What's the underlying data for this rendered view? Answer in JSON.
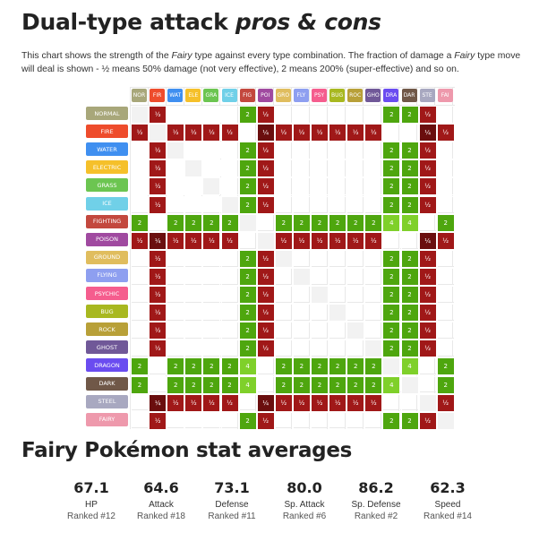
{
  "title_main": "Dual-type attack ",
  "title_em": "pros & cons",
  "intro_parts": [
    "This chart shows the strength of the ",
    "Fairy",
    " type against every type combination. The fraction of damage a ",
    "Fairy",
    " type move will deal is shown - ½ means 50% damage (not very effective), 2 means 200% (super-effective) and so on."
  ],
  "types": [
    {
      "abbr": "NOR",
      "name": "NORMAL",
      "color": "#a8a77a"
    },
    {
      "abbr": "FIR",
      "name": "FIRE",
      "color": "#ee4c2c"
    },
    {
      "abbr": "WAT",
      "name": "WATER",
      "color": "#3f8ff0"
    },
    {
      "abbr": "ELE",
      "name": "ELECTRIC",
      "color": "#f5c02a"
    },
    {
      "abbr": "GRA",
      "name": "GRASS",
      "color": "#6cc551"
    },
    {
      "abbr": "ICE",
      "name": "ICE",
      "color": "#70d0e8"
    },
    {
      "abbr": "FIG",
      "name": "FIGHTING",
      "color": "#c3483e"
    },
    {
      "abbr": "POI",
      "name": "POISON",
      "color": "#a04aa0"
    },
    {
      "abbr": "GRO",
      "name": "GROUND",
      "color": "#e0bd5e"
    },
    {
      "abbr": "FLY",
      "name": "FLYING",
      "color": "#8e9ff0"
    },
    {
      "abbr": "PSY",
      "name": "PSYCHIC",
      "color": "#f55d8e"
    },
    {
      "abbr": "BUG",
      "name": "BUG",
      "color": "#a8b820"
    },
    {
      "abbr": "ROC",
      "name": "ROCK",
      "color": "#b8a038"
    },
    {
      "abbr": "GHO",
      "name": "GHOST",
      "color": "#705898"
    },
    {
      "abbr": "DRA",
      "name": "DRAGON",
      "color": "#6a4cf0"
    },
    {
      "abbr": "DAR",
      "name": "DARK",
      "color": "#705848"
    },
    {
      "abbr": "STE",
      "name": "STEEL",
      "color": "#a8a8c0"
    },
    {
      "abbr": "FAI",
      "name": "FAIRY",
      "color": "#ee99ac"
    }
  ],
  "matrix": [
    [
      "",
      "½",
      "",
      "",
      "",
      "",
      "2",
      "½",
      "",
      "",
      "",
      "",
      "",
      "",
      "2",
      "2",
      "½",
      ""
    ],
    [
      "½",
      "",
      "½",
      "½",
      "½",
      "½",
      "",
      "¼",
      "½",
      "½",
      "½",
      "½",
      "½",
      "½",
      "",
      "",
      "¼",
      "½"
    ],
    [
      "",
      "½",
      "",
      "",
      "",
      "",
      "2",
      "½",
      "",
      "",
      "",
      "",
      "",
      "",
      "2",
      "2",
      "½",
      ""
    ],
    [
      "",
      "½",
      "",
      "",
      "",
      "",
      "2",
      "½",
      "",
      "",
      "",
      "",
      "",
      "",
      "2",
      "2",
      "½",
      ""
    ],
    [
      "",
      "½",
      "",
      "",
      "",
      "",
      "2",
      "½",
      "",
      "",
      "",
      "",
      "",
      "",
      "2",
      "2",
      "½",
      ""
    ],
    [
      "",
      "½",
      "",
      "",
      "",
      "",
      "2",
      "½",
      "",
      "",
      "",
      "",
      "",
      "",
      "2",
      "2",
      "½",
      ""
    ],
    [
      "2",
      "",
      "2",
      "2",
      "2",
      "2",
      "",
      "",
      "2",
      "2",
      "2",
      "2",
      "2",
      "2",
      "4",
      "4",
      "",
      "2"
    ],
    [
      "½",
      "¼",
      "½",
      "½",
      "½",
      "½",
      "",
      "",
      "½",
      "½",
      "½",
      "½",
      "½",
      "½",
      "",
      "",
      "¼",
      "½"
    ],
    [
      "",
      "½",
      "",
      "",
      "",
      "",
      "2",
      "½",
      "",
      "",
      "",
      "",
      "",
      "",
      "2",
      "2",
      "½",
      ""
    ],
    [
      "",
      "½",
      "",
      "",
      "",
      "",
      "2",
      "½",
      "",
      "",
      "",
      "",
      "",
      "",
      "2",
      "2",
      "½",
      ""
    ],
    [
      "",
      "½",
      "",
      "",
      "",
      "",
      "2",
      "½",
      "",
      "",
      "",
      "",
      "",
      "",
      "2",
      "2",
      "½",
      ""
    ],
    [
      "",
      "½",
      "",
      "",
      "",
      "",
      "2",
      "½",
      "",
      "",
      "",
      "",
      "",
      "",
      "2",
      "2",
      "½",
      ""
    ],
    [
      "",
      "½",
      "",
      "",
      "",
      "",
      "2",
      "½",
      "",
      "",
      "",
      "",
      "",
      "",
      "2",
      "2",
      "½",
      ""
    ],
    [
      "",
      "½",
      "",
      "",
      "",
      "",
      "2",
      "½",
      "",
      "",
      "",
      "",
      "",
      "",
      "2",
      "2",
      "½",
      ""
    ],
    [
      "2",
      "",
      "2",
      "2",
      "2",
      "2",
      "4",
      "",
      "2",
      "2",
      "2",
      "2",
      "2",
      "2",
      "",
      "4",
      "",
      "2"
    ],
    [
      "2",
      "",
      "2",
      "2",
      "2",
      "2",
      "4",
      "",
      "2",
      "2",
      "2",
      "2",
      "2",
      "2",
      "4",
      "",
      "",
      "2"
    ],
    [
      "",
      "¼",
      "½",
      "½",
      "½",
      "½",
      "",
      "¼",
      "½",
      "½",
      "½",
      "½",
      "½",
      "½",
      "",
      "",
      "",
      "½"
    ],
    [
      "",
      "½",
      "",
      "",
      "",
      "",
      "2",
      "½",
      "",
      "",
      "",
      "",
      "",
      "",
      "2",
      "2",
      "½",
      ""
    ]
  ],
  "value_colors": {
    "½": "#a01818",
    "¼": "#6a0e0e",
    "2": "#4ea60e",
    "4": "#7fd02a"
  },
  "stats_title": "Fairy Pokémon stat averages",
  "stats": [
    {
      "value": "67.1",
      "name": "HP",
      "rank": "Ranked #12"
    },
    {
      "value": "64.6",
      "name": "Attack",
      "rank": "Ranked #18"
    },
    {
      "value": "73.1",
      "name": "Defense",
      "rank": "Ranked #11"
    },
    {
      "value": "80.0",
      "name": "Sp. Attack",
      "rank": "Ranked #6"
    },
    {
      "value": "86.2",
      "name": "Sp. Defense",
      "rank": "Ranked #2"
    },
    {
      "value": "62.3",
      "name": "Speed",
      "rank": "Ranked #14"
    }
  ]
}
